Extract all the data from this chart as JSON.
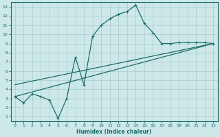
{
  "xlabel": "Humidex (Indice chaleur)",
  "xlim": [
    -0.5,
    23.5
  ],
  "ylim": [
    0.5,
    13.5
  ],
  "xticks": [
    0,
    1,
    2,
    3,
    4,
    5,
    6,
    7,
    8,
    9,
    10,
    11,
    12,
    13,
    14,
    15,
    16,
    17,
    18,
    19,
    20,
    21,
    22,
    23
  ],
  "yticks": [
    1,
    2,
    3,
    4,
    5,
    6,
    7,
    8,
    9,
    10,
    11,
    12,
    13
  ],
  "bg_color": "#cce8e8",
  "grid_color": "#aacccc",
  "line_color": "#1e6b6b",
  "line1_x": [
    0,
    1,
    2,
    3,
    4,
    5,
    6,
    7,
    8,
    9,
    10,
    11,
    12,
    13,
    14,
    15,
    16,
    17,
    18,
    19,
    20,
    21,
    22,
    23
  ],
  "line1_y": [
    3.2,
    2.5,
    3.5,
    3.2,
    2.8,
    0.8,
    3.0,
    7.5,
    4.5,
    9.8,
    11.0,
    11.7,
    12.2,
    12.5,
    13.2,
    11.2,
    10.2,
    9.0,
    9.0,
    9.1,
    9.1,
    9.1,
    9.1,
    9.0
  ],
  "line2_x": [
    0,
    23
  ],
  "line2_y": [
    3.2,
    9.0
  ],
  "line3_x": [
    0,
    23
  ],
  "line3_y": [
    4.5,
    9.0
  ],
  "marker": "+"
}
